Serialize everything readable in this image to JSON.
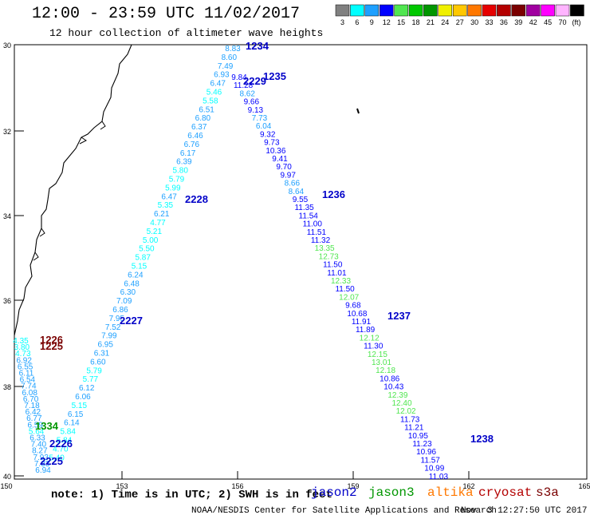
{
  "title": "12:00 - 23:59 UTC 11/02/2017",
  "subtitle": "12 hour collection of altimeter wave heights",
  "legend": {
    "unit": "(ft)",
    "entries": [
      {
        "label": "3",
        "color": "#808080"
      },
      {
        "label": "6",
        "color": "#00ffff"
      },
      {
        "label": "9",
        "color": "#1ea0ff"
      },
      {
        "label": "12",
        "color": "#0000ff"
      },
      {
        "label": "15",
        "color": "#50e650"
      },
      {
        "label": "18",
        "color": "#00c800"
      },
      {
        "label": "21",
        "color": "#009600"
      },
      {
        "label": "24",
        "color": "#f0f000"
      },
      {
        "label": "27",
        "color": "#ffc800"
      },
      {
        "label": "30",
        "color": "#ff7800"
      },
      {
        "label": "33",
        "color": "#e60000"
      },
      {
        "label": "36",
        "color": "#b40000"
      },
      {
        "label": "39",
        "color": "#7a0000"
      },
      {
        "label": "42",
        "color": "#a000a0"
      },
      {
        "label": "45",
        "color": "#ff00ff"
      },
      {
        "label": "70",
        "color": "#ffb4ff"
      },
      {
        "label": "",
        "color": "#000000"
      }
    ]
  },
  "axes": {
    "lat_labels": [
      "30",
      "32",
      "34",
      "36",
      "38",
      "40"
    ],
    "lon_labels": [
      "150",
      "153",
      "156",
      "159",
      "162",
      "165"
    ]
  },
  "passes": [
    {
      "label": "1234",
      "color": "#0000c8"
    },
    {
      "label": "1235",
      "color": "#0000c8"
    },
    {
      "label": "2229",
      "color": "#0000c8"
    },
    {
      "label": "2228",
      "color": "#0000c8"
    },
    {
      "label": "1236",
      "color": "#0000c8"
    },
    {
      "label": "2227",
      "color": "#0000c8"
    },
    {
      "label": "1237",
      "color": "#0000c8"
    },
    {
      "label": "1226",
      "color": "#7a0000"
    },
    {
      "label": "1225",
      "color": "#7a0000"
    },
    {
      "label": "1334",
      "color": "#009600"
    },
    {
      "label": "2226",
      "color": "#0000c8"
    },
    {
      "label": "2225",
      "color": "#0000c8"
    },
    {
      "label": "1238",
      "color": "#0000c8"
    }
  ],
  "tracks": {
    "track_a": [
      "8.83",
      "8.60",
      "7.49",
      "6.93",
      "6.47",
      "5.46",
      "5.58",
      "6.51",
      "6.80",
      "6.37",
      "6.46",
      "6.76",
      "6.17",
      "6.39",
      "5.80",
      "5.79",
      "5.99",
      "6.47",
      "5.35",
      "6.21",
      "4.77",
      "5.21",
      "5.00",
      "5.50",
      "5.87",
      "5.15",
      "6.24",
      "6.48",
      "6.30",
      "7.09",
      "6.86",
      "7.95",
      "7.52",
      "7.99",
      "6.95",
      "6.31",
      "6.60",
      "5.79",
      "5.77",
      "6.12",
      "6.06",
      "5.15",
      "6.15",
      "6.14",
      "5.84",
      "5.84",
      "4.70",
      "5.40"
    ],
    "track_b": [
      "9.84",
      "11.28",
      "8.62",
      "9.66",
      "9.13",
      "7.73",
      "6.04",
      "9.32",
      "9.73",
      "10.36",
      "9.41",
      "9.70",
      "9.97",
      "8.66",
      "8.64",
      "9.55",
      "11.35",
      "11.54",
      "11.00",
      "11.51",
      "11.32",
      "13.35",
      "12.73",
      "11.50",
      "11.01",
      "12.33",
      "11.50",
      "12.07",
      "9.68",
      "10.68",
      "11.91",
      "11.89",
      "12.12",
      "11.30",
      "12.15",
      "13.01",
      "12.18",
      "10.86",
      "10.43",
      "12.39",
      "12.40",
      "12.02",
      "11.73",
      "11.21",
      "10.95",
      "11.23",
      "10.96",
      "11.57",
      "10.99",
      "11.03"
    ],
    "track_c": [
      "4.35",
      "3.80",
      "4.73",
      "6.92",
      "6.55",
      "6.11",
      "6.54",
      "7.74",
      "6.08",
      "6.70",
      "7.18",
      "6.42",
      "6.77",
      "6.59",
      "5.64",
      "6.33",
      "7.40",
      "8.27",
      "7.93",
      "7.33",
      "6.94"
    ]
  },
  "footer": {
    "note": "note: 1) Time is in UTC; 2) SWH is in feet",
    "satellites": [
      {
        "label": "jason2",
        "color": "#0000c8"
      },
      {
        "label": "jason3",
        "color": "#009600"
      },
      {
        "label": "altika",
        "color": "#ff7800"
      },
      {
        "label": "cryosat",
        "color": "#b40000"
      },
      {
        "label": "s3a",
        "color": "#7a0000"
      }
    ],
    "credit": "NOAA/NESDIS Center for Satellite Applications and Research",
    "timestamp": "Nov  3 12:27:50 UTC 2017"
  }
}
